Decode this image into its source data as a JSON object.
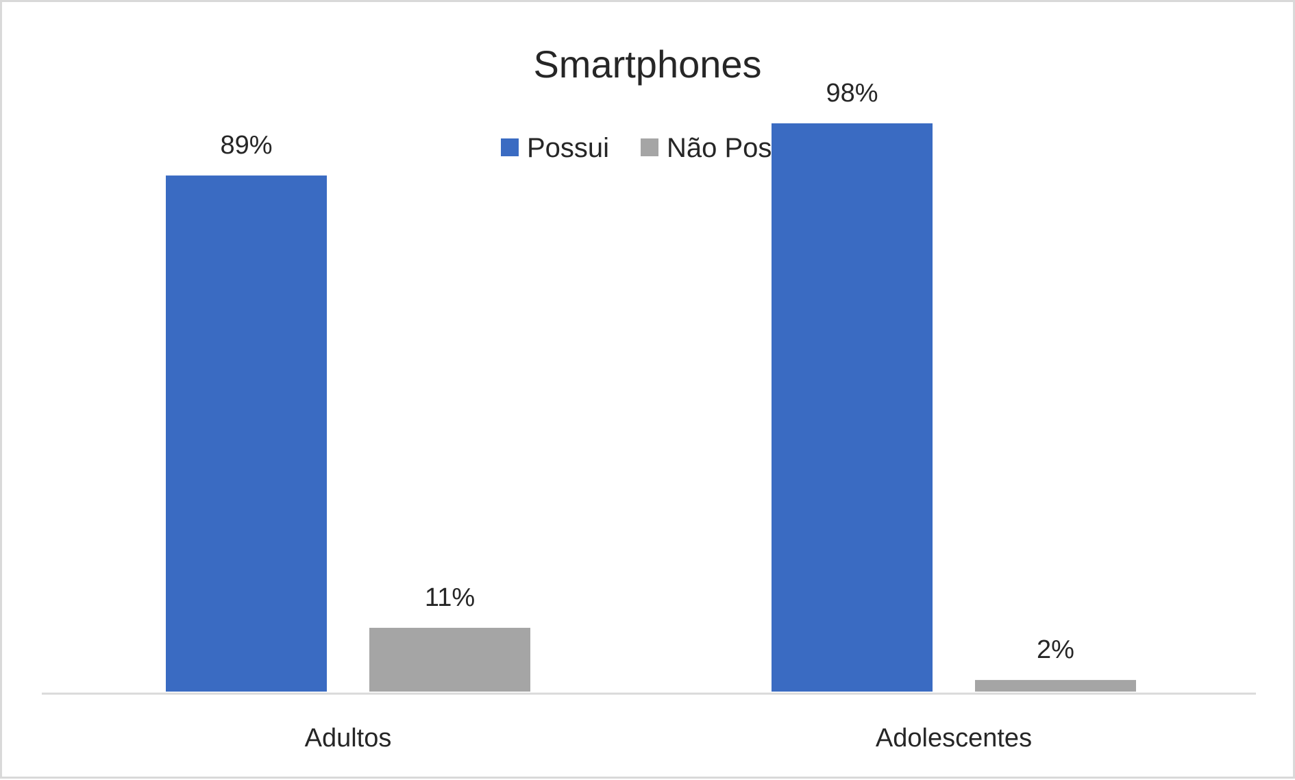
{
  "chart_data": {
    "type": "bar",
    "title": "Smartphones",
    "xlabel": "",
    "ylabel": "",
    "categories": [
      "Adultos",
      "Adolescentes"
    ],
    "series": [
      {
        "name": "Possui",
        "color": "#3A6BC2",
        "values": [
          89,
          98
        ],
        "labels": [
          "89%",
          "98%"
        ]
      },
      {
        "name": "Não Possui",
        "color": "#A5A5A5",
        "values": [
          11,
          2
        ],
        "labels": [
          "11%",
          "2%"
        ]
      }
    ],
    "ylim": [
      0,
      100
    ],
    "grid": false,
    "legend_position": "top-center",
    "value_format": "percent"
  }
}
